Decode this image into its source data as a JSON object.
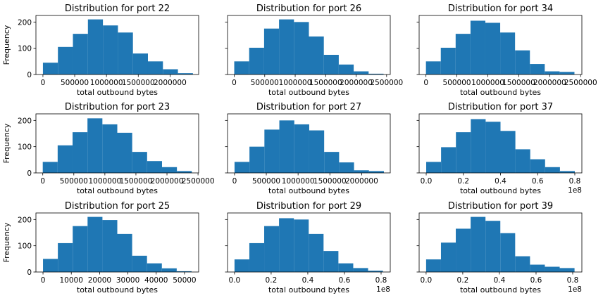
{
  "chart_data": [
    {
      "type": "bar",
      "title": "Distribution for port 22",
      "xlabel": "total outbound bytes",
      "ylabel": "Frequency",
      "offset_text": "",
      "xlim": [
        -110000,
        2450000
      ],
      "ylim": [
        0,
        225
      ],
      "bin_edges": [
        0,
        236000,
        472000,
        708000,
        944000,
        1180000,
        1416000,
        1652000,
        1888000,
        2124000,
        2360000
      ],
      "values": [
        45,
        105,
        155,
        210,
        187,
        160,
        80,
        50,
        20,
        5
      ],
      "xticks": [
        {
          "v": 0,
          "label": "0"
        },
        {
          "v": 500000,
          "label": "500000"
        },
        {
          "v": 1000000,
          "label": "1000000"
        },
        {
          "v": 1500000,
          "label": "1500000"
        },
        {
          "v": 2000000,
          "label": "2000000"
        }
      ],
      "yticks": [
        {
          "v": 0,
          "label": "0"
        },
        {
          "v": 100,
          "label": "100"
        },
        {
          "v": 200,
          "label": "200"
        }
      ],
      "show_yticklabels": true,
      "color": "#1f77b4"
    },
    {
      "type": "bar",
      "title": "Distribution for port 26",
      "xlabel": "total outbound bytes",
      "ylabel": "",
      "offset_text": "",
      "xlim": [
        -110000,
        2560000
      ],
      "ylim": [
        0,
        225
      ],
      "bin_edges": [
        0,
        245000,
        490000,
        735000,
        980000,
        1225000,
        1470000,
        1715000,
        1960000,
        2205000,
        2450000
      ],
      "values": [
        50,
        102,
        175,
        210,
        200,
        145,
        75,
        38,
        12,
        3
      ],
      "xticks": [
        {
          "v": 0,
          "label": "0"
        },
        {
          "v": 500000,
          "label": "500000"
        },
        {
          "v": 1000000,
          "label": "1000000"
        },
        {
          "v": 1500000,
          "label": "1500000"
        },
        {
          "v": 2000000,
          "label": "2000000"
        },
        {
          "v": 2500000,
          "label": "2500000"
        }
      ],
      "yticks": [
        {
          "v": 0,
          "label": "0"
        },
        {
          "v": 100,
          "label": "100"
        },
        {
          "v": 200,
          "label": "200"
        }
      ],
      "show_yticklabels": false,
      "color": "#1f77b4"
    },
    {
      "type": "bar",
      "title": "Distribution for port 34",
      "xlabel": "total outbound bytes",
      "ylabel": "",
      "offset_text": "",
      "xlim": [
        -110000,
        2520000
      ],
      "ylim": [
        0,
        225
      ],
      "bin_edges": [
        0,
        240000,
        480000,
        720000,
        960000,
        1200000,
        1440000,
        1680000,
        1920000,
        2160000,
        2400000
      ],
      "values": [
        50,
        102,
        155,
        205,
        197,
        160,
        92,
        40,
        12,
        10
      ],
      "xticks": [
        {
          "v": 0,
          "label": "0"
        },
        {
          "v": 500000,
          "label": "500000"
        },
        {
          "v": 1000000,
          "label": "1000000"
        },
        {
          "v": 1500000,
          "label": "1500000"
        },
        {
          "v": 2000000,
          "label": "2000000"
        },
        {
          "v": 2500000,
          "label": "2500000"
        }
      ],
      "yticks": [
        {
          "v": 0,
          "label": "0"
        },
        {
          "v": 100,
          "label": "100"
        },
        {
          "v": 200,
          "label": "200"
        }
      ],
      "show_yticklabels": false,
      "color": "#1f77b4"
    },
    {
      "type": "bar",
      "title": "Distribution for port 23",
      "xlabel": "total outbound bytes",
      "ylabel": "Frequency",
      "offset_text": "",
      "xlim": [
        -110000,
        2510000
      ],
      "ylim": [
        0,
        225
      ],
      "bin_edges": [
        0,
        240000,
        480000,
        720000,
        960000,
        1200000,
        1440000,
        1680000,
        1920000,
        2160000,
        2400000
      ],
      "values": [
        42,
        105,
        155,
        208,
        185,
        153,
        80,
        45,
        22,
        7
      ],
      "xticks": [
        {
          "v": 0,
          "label": "0"
        },
        {
          "v": 500000,
          "label": "500000"
        },
        {
          "v": 1000000,
          "label": "1000000"
        },
        {
          "v": 1500000,
          "label": "1500000"
        },
        {
          "v": 2000000,
          "label": "2000000"
        },
        {
          "v": 2500000,
          "label": "2500000"
        }
      ],
      "yticks": [
        {
          "v": 0,
          "label": "0"
        },
        {
          "v": 100,
          "label": "100"
        },
        {
          "v": 200,
          "label": "200"
        }
      ],
      "show_yticklabels": true,
      "color": "#1f77b4"
    },
    {
      "type": "bar",
      "title": "Distribution for port 27",
      "xlabel": "total outbound bytes",
      "ylabel": "",
      "offset_text": "",
      "xlim": [
        -110000,
        2450000
      ],
      "ylim": [
        0,
        225
      ],
      "bin_edges": [
        0,
        235000,
        470000,
        705000,
        940000,
        1175000,
        1410000,
        1645000,
        1880000,
        2115000,
        2350000
      ],
      "values": [
        42,
        100,
        165,
        200,
        185,
        162,
        80,
        40,
        10,
        7
      ],
      "xticks": [
        {
          "v": 0,
          "label": "0"
        },
        {
          "v": 500000,
          "label": "500000"
        },
        {
          "v": 1000000,
          "label": "1000000"
        },
        {
          "v": 1500000,
          "label": "1500000"
        },
        {
          "v": 2000000,
          "label": "2000000"
        }
      ],
      "yticks": [
        {
          "v": 0,
          "label": "0"
        },
        {
          "v": 100,
          "label": "100"
        },
        {
          "v": 200,
          "label": "200"
        }
      ],
      "show_yticklabels": false,
      "color": "#1f77b4"
    },
    {
      "type": "bar",
      "title": "Distribution for port 37",
      "xlabel": "total outbound bytes",
      "ylabel": "",
      "offset_text": "1e8",
      "xlim": [
        -0.038,
        0.838
      ],
      "ylim": [
        0,
        225
      ],
      "bin_edges": [
        0,
        0.08,
        0.16,
        0.24,
        0.32,
        0.4,
        0.48,
        0.56,
        0.64,
        0.72,
        0.8
      ],
      "values": [
        42,
        98,
        155,
        205,
        195,
        160,
        90,
        52,
        22,
        7
      ],
      "xticks": [
        {
          "v": 0,
          "label": "0.0"
        },
        {
          "v": 0.2,
          "label": "0.2"
        },
        {
          "v": 0.4,
          "label": "0.4"
        },
        {
          "v": 0.6,
          "label": "0.6"
        },
        {
          "v": 0.8,
          "label": "0.8"
        }
      ],
      "yticks": [
        {
          "v": 0,
          "label": "0"
        },
        {
          "v": 100,
          "label": "100"
        },
        {
          "v": 200,
          "label": "200"
        }
      ],
      "show_yticklabels": false,
      "color": "#1f77b4"
    },
    {
      "type": "bar",
      "title": "Distribution for port 25",
      "xlabel": "total outbound bytes",
      "ylabel": "Frequency",
      "offset_text": "",
      "xlim": [
        -2500,
        55000
      ],
      "ylim": [
        0,
        225
      ],
      "bin_edges": [
        0,
        5250,
        10500,
        15750,
        21000,
        26250,
        31500,
        36750,
        42000,
        47250,
        52500
      ],
      "values": [
        50,
        110,
        175,
        210,
        198,
        145,
        62,
        33,
        14,
        3
      ],
      "xticks": [
        {
          "v": 0,
          "label": "0"
        },
        {
          "v": 10000,
          "label": "10000"
        },
        {
          "v": 20000,
          "label": "20000"
        },
        {
          "v": 30000,
          "label": "30000"
        },
        {
          "v": 40000,
          "label": "40000"
        },
        {
          "v": 50000,
          "label": "50000"
        }
      ],
      "yticks": [
        {
          "v": 0,
          "label": "0"
        },
        {
          "v": 100,
          "label": "100"
        },
        {
          "v": 200,
          "label": "200"
        }
      ],
      "show_yticklabels": true,
      "color": "#1f77b4"
    },
    {
      "type": "bar",
      "title": "Distribution for port 29",
      "xlabel": "total outbound bytes",
      "ylabel": "",
      "offset_text": "1e8",
      "xlim": [
        -0.038,
        0.85
      ],
      "ylim": [
        0,
        225
      ],
      "bin_edges": [
        0,
        0.081,
        0.162,
        0.243,
        0.324,
        0.405,
        0.486,
        0.567,
        0.648,
        0.729,
        0.81
      ],
      "values": [
        48,
        110,
        175,
        205,
        200,
        145,
        80,
        33,
        15,
        5
      ],
      "xticks": [
        {
          "v": 0,
          "label": "0.0"
        },
        {
          "v": 0.2,
          "label": "0.2"
        },
        {
          "v": 0.4,
          "label": "0.4"
        },
        {
          "v": 0.6,
          "label": "0.6"
        },
        {
          "v": 0.8,
          "label": "0.8"
        }
      ],
      "yticks": [
        {
          "v": 0,
          "label": "0"
        },
        {
          "v": 100,
          "label": "100"
        },
        {
          "v": 200,
          "label": "200"
        }
      ],
      "show_yticklabels": false,
      "color": "#1f77b4"
    },
    {
      "type": "bar",
      "title": "Distribution for port 39",
      "xlabel": "total outbound bytes",
      "ylabel": "",
      "offset_text": "1e8",
      "xlim": [
        -0.038,
        0.85
      ],
      "ylim": [
        0,
        225
      ],
      "bin_edges": [
        0,
        0.081,
        0.162,
        0.243,
        0.324,
        0.405,
        0.486,
        0.567,
        0.648,
        0.729,
        0.81
      ],
      "values": [
        48,
        112,
        165,
        210,
        195,
        148,
        60,
        28,
        20,
        15
      ],
      "xticks": [
        {
          "v": 0,
          "label": "0.0"
        },
        {
          "v": 0.2,
          "label": "0.2"
        },
        {
          "v": 0.4,
          "label": "0.4"
        },
        {
          "v": 0.6,
          "label": "0.6"
        },
        {
          "v": 0.8,
          "label": "0.8"
        }
      ],
      "yticks": [
        {
          "v": 0,
          "label": "0"
        },
        {
          "v": 100,
          "label": "100"
        },
        {
          "v": 200,
          "label": "200"
        }
      ],
      "show_yticklabels": false,
      "color": "#1f77b4"
    }
  ]
}
